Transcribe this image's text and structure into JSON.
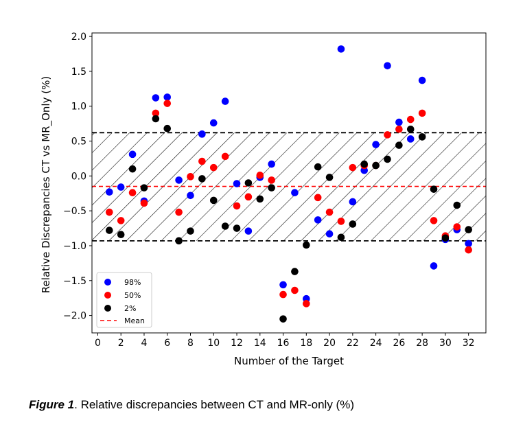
{
  "chart_data": {
    "type": "scatter",
    "xlabel": "Number of the Target",
    "ylabel": "Relative Discrepancies CT vs MR_Only (%)",
    "xlim": [
      -0.5,
      33.5
    ],
    "ylim": [
      -2.25,
      2.05
    ],
    "xticks": [
      0,
      2,
      4,
      6,
      8,
      10,
      12,
      14,
      16,
      18,
      20,
      22,
      24,
      26,
      28,
      30,
      32
    ],
    "yticks": [
      -2.0,
      -1.5,
      -1.0,
      -0.5,
      0.0,
      0.5,
      1.0,
      1.5,
      2.0
    ],
    "grid": false,
    "legend_position": "lower-left",
    "x": [
      1,
      2,
      3,
      4,
      5,
      6,
      7,
      8,
      9,
      10,
      11,
      12,
      13,
      14,
      15,
      16,
      17,
      18,
      19,
      20,
      21,
      22,
      23,
      24,
      25,
      26,
      27,
      28,
      29,
      30,
      31,
      32
    ],
    "series": [
      {
        "name": "98%",
        "color": "#0000ff",
        "values": [
          -0.23,
          -0.16,
          0.31,
          -0.36,
          1.12,
          1.13,
          -0.06,
          -0.28,
          0.6,
          0.76,
          1.07,
          -0.11,
          -0.79,
          -0.02,
          0.17,
          -1.56,
          -0.24,
          -1.76,
          -0.63,
          -0.83,
          1.82,
          -0.37,
          0.08,
          0.45,
          1.58,
          0.77,
          0.53,
          1.37,
          -1.29,
          -0.91,
          -0.77,
          -0.97
        ]
      },
      {
        "name": "50%",
        "color": "#ff0000",
        "values": [
          -0.52,
          -0.64,
          -0.24,
          -0.39,
          0.9,
          1.04,
          -0.52,
          -0.01,
          0.21,
          0.12,
          0.28,
          -0.43,
          -0.3,
          0.01,
          -0.06,
          -1.7,
          -1.64,
          -1.83,
          -0.31,
          -0.52,
          -0.65,
          0.12,
          0.15,
          0.15,
          0.59,
          0.67,
          0.81,
          0.9,
          -0.64,
          -0.86,
          -0.73,
          -1.06
        ]
      },
      {
        "name": "2%",
        "color": "#000000",
        "values": [
          -0.78,
          -0.84,
          0.1,
          -0.17,
          0.82,
          0.68,
          -0.93,
          -0.79,
          -0.04,
          -0.35,
          -0.72,
          -0.75,
          -0.1,
          -0.33,
          -0.17,
          -2.05,
          -1.37,
          -0.99,
          0.13,
          -0.02,
          -0.88,
          -0.69,
          0.17,
          0.15,
          0.24,
          0.44,
          0.67,
          0.56,
          -0.19,
          -0.89,
          -0.42,
          -0.77
        ]
      }
    ],
    "mean": {
      "name": "Mean",
      "value": -0.15,
      "color": "#ff0000",
      "style": "dashed"
    },
    "band": {
      "lower": -0.93,
      "upper": 0.62,
      "border_color": "#000000",
      "border_style": "dashed",
      "hatch": "diagonal"
    }
  },
  "caption": {
    "label": "Figure 1",
    "text": ". Relative discrepancies between CT and MR-only (%)"
  }
}
